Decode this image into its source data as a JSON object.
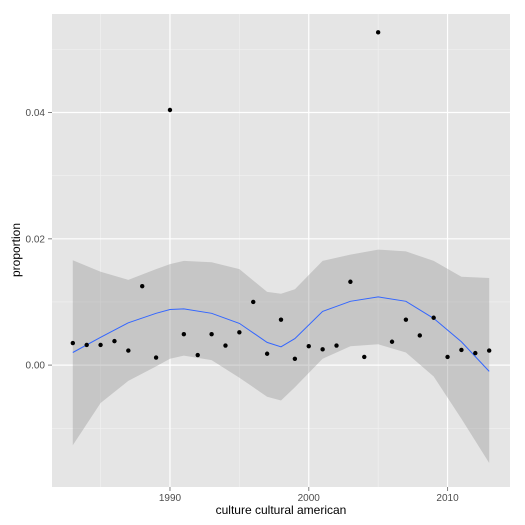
{
  "chart_data": {
    "type": "scatter",
    "title": "",
    "xlabel": "culture cultural american",
    "ylabel": "proportion",
    "xlim": [
      1981.5,
      2014.5
    ],
    "ylim": [
      -0.0193,
      0.0556
    ],
    "x_ticks": [
      1990,
      2000,
      2010
    ],
    "y_ticks": [
      0.0,
      0.02,
      0.04
    ],
    "x_tick_labels": [
      "1990",
      "2000",
      "2010"
    ],
    "y_tick_labels": [
      "0.00",
      "0.02",
      "0.04"
    ],
    "grid": true,
    "legend": "none",
    "points": [
      {
        "x": 1983,
        "y": 0.0035
      },
      {
        "x": 1984,
        "y": 0.0032
      },
      {
        "x": 1985,
        "y": 0.0032
      },
      {
        "x": 1986,
        "y": 0.0038
      },
      {
        "x": 1987,
        "y": 0.0023
      },
      {
        "x": 1988,
        "y": 0.0125
      },
      {
        "x": 1989,
        "y": 0.0012
      },
      {
        "x": 1990,
        "y": 0.0404
      },
      {
        "x": 1991,
        "y": 0.0049
      },
      {
        "x": 1992,
        "y": 0.0016
      },
      {
        "x": 1993,
        "y": 0.0049
      },
      {
        "x": 1994,
        "y": 0.0031
      },
      {
        "x": 1995,
        "y": 0.0052
      },
      {
        "x": 1996,
        "y": 0.01
      },
      {
        "x": 1997,
        "y": 0.0018
      },
      {
        "x": 1998,
        "y": 0.0072
      },
      {
        "x": 1999,
        "y": 0.001
      },
      {
        "x": 2000,
        "y": 0.003
      },
      {
        "x": 2001,
        "y": 0.0025
      },
      {
        "x": 2002,
        "y": 0.0031
      },
      {
        "x": 2003,
        "y": 0.0132
      },
      {
        "x": 2004,
        "y": 0.0013
      },
      {
        "x": 2005,
        "y": 0.0527
      },
      {
        "x": 2006,
        "y": 0.0037
      },
      {
        "x": 2007,
        "y": 0.0072
      },
      {
        "x": 2008,
        "y": 0.0047
      },
      {
        "x": 2009,
        "y": 0.0075
      },
      {
        "x": 2010,
        "y": 0.0013
      },
      {
        "x": 2011,
        "y": 0.0024
      },
      {
        "x": 2012,
        "y": 0.0019
      },
      {
        "x": 2013,
        "y": 0.0023
      }
    ],
    "smooth": {
      "x": [
        1983,
        1985,
        1987,
        1989,
        1990,
        1991,
        1993,
        1995,
        1997,
        1998,
        1999,
        2001,
        2003,
        2005,
        2007,
        2009,
        2011,
        2013
      ],
      "y": [
        0.002,
        0.0044,
        0.0067,
        0.0082,
        0.0088,
        0.0089,
        0.0082,
        0.0066,
        0.0036,
        0.0029,
        0.0042,
        0.0085,
        0.0101,
        0.0108,
        0.0101,
        0.0074,
        0.0037,
        -0.001
      ],
      "lower": [
        -0.0127,
        -0.006,
        -0.0025,
        -0.0002,
        0.001,
        0.0015,
        0.0008,
        -0.002,
        -0.005,
        -0.0056,
        -0.0035,
        0.001,
        0.003,
        0.0033,
        0.002,
        -0.0018,
        -0.0085,
        -0.0155
      ],
      "upper": [
        0.0166,
        0.0148,
        0.0135,
        0.0152,
        0.016,
        0.0165,
        0.0163,
        0.0152,
        0.0116,
        0.0113,
        0.012,
        0.0165,
        0.0175,
        0.0183,
        0.018,
        0.0165,
        0.014,
        0.0138
      ]
    },
    "colors": {
      "panel_bg": "#e5e5e5",
      "grid_major": "#ffffff",
      "grid_minor": "#f2f2f2",
      "point": "#000000",
      "smooth_line": "#3366ff",
      "ribbon": "#999999"
    }
  }
}
